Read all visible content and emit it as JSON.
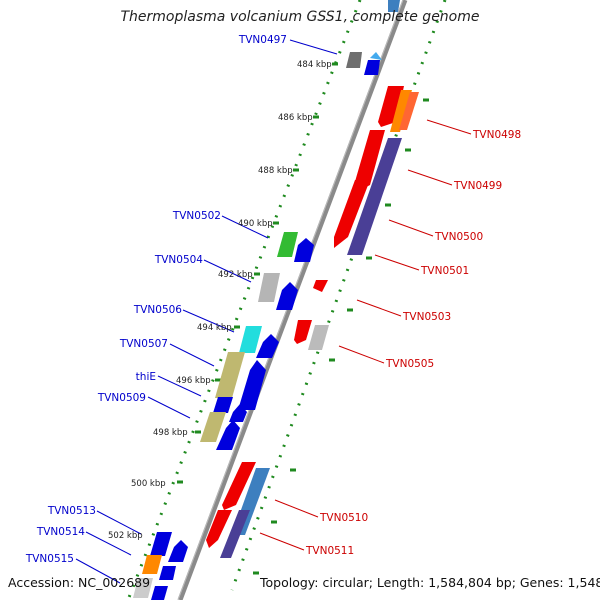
{
  "title": "Thermoplasma volcanium GSS1, complete genome",
  "accession": "Accession: NC_002689",
  "topology": "Topology: circular; Length: 1,584,804 bp; Genes: 1,548",
  "colors": {
    "backbone": "#8a8a8a",
    "ticks": "#1f8a1f",
    "label_left": "#0000cc",
    "label_right": "#cc0000"
  },
  "kbp_labels": [
    "484 kbp",
    "486 kbp",
    "488 kbp",
    "490 kbp",
    "492 kbp",
    "494 kbp",
    "496 kbp",
    "498 kbp",
    "500 kbp",
    "502 kbp"
  ],
  "left_labels": [
    "TVN0497",
    "TVN0502",
    "TVN0504",
    "TVN0506",
    "TVN0507",
    "thiE",
    "TVN0509",
    "TVN0513",
    "TVN0514",
    "TVN0515"
  ],
  "right_labels": [
    "TVN0498",
    "TVN0499",
    "TVN0500",
    "TVN0501",
    "TVN0503",
    "TVN0505",
    "TVN0510",
    "TVN0511"
  ]
}
